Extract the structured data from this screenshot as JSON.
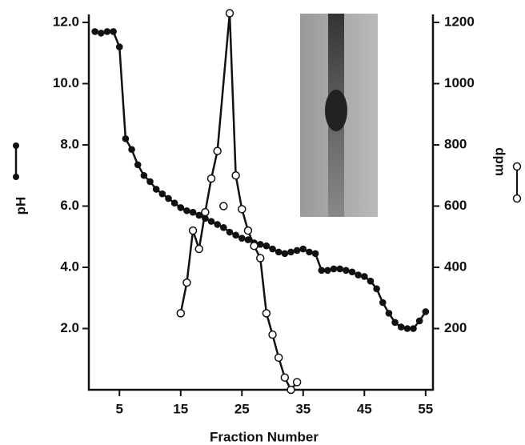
{
  "chart_data": {
    "type": "line",
    "x_label": "Fraction Number",
    "y_label": "pH",
    "y2_label": "dpm",
    "xlim": [
      0,
      56.2
    ],
    "xticks": [
      5,
      15,
      25,
      35,
      45,
      55
    ],
    "ylim": [
      0,
      12
    ],
    "yticks": [
      {
        "value": 2,
        "label": "2.0"
      },
      {
        "value": 4,
        "label": "4.0"
      },
      {
        "value": 6,
        "label": "6.0"
      },
      {
        "value": 8,
        "label": "8.0"
      },
      {
        "value": 10,
        "label": "10.0"
      },
      {
        "value": 12,
        "label": "12.0"
      }
    ],
    "y2lim": [
      0,
      1200
    ],
    "y2ticks": [
      200,
      400,
      600,
      800,
      1000,
      1200
    ],
    "series": [
      {
        "color": "#111111",
        "marker": "filled",
        "x": [
          1,
          2,
          3,
          4,
          5,
          6,
          7,
          8,
          9,
          10,
          11,
          12,
          13,
          14,
          15,
          16,
          17,
          18,
          19,
          20,
          21,
          22,
          23,
          24,
          25,
          26,
          27,
          28,
          29,
          30,
          31,
          32,
          33,
          34,
          35,
          36,
          37,
          38,
          39,
          40,
          41,
          42,
          43,
          44,
          45,
          46,
          47,
          48,
          49,
          50,
          51,
          52,
          53,
          54,
          55
        ],
        "values": [
          11.7,
          11.65,
          11.7,
          11.7,
          11.2,
          8.2,
          7.85,
          7.35,
          7.0,
          6.8,
          6.55,
          6.4,
          6.25,
          6.1,
          5.95,
          5.85,
          5.8,
          5.7,
          5.6,
          5.5,
          5.4,
          5.3,
          5.15,
          5.05,
          4.95,
          4.9,
          4.8,
          4.75,
          4.7,
          4.6,
          4.5,
          4.45,
          4.5,
          4.55,
          4.6,
          4.5,
          4.45,
          3.9,
          3.9,
          3.95,
          3.95,
          3.9,
          3.85,
          3.75,
          3.7,
          3.55,
          3.3,
          2.85,
          2.5,
          2.2,
          2.05,
          2.0,
          2.0,
          2.25,
          2.55
        ]
      },
      {
        "color": "#111111",
        "marker": "open",
        "axis": "y2",
        "x": [
          15,
          16,
          17,
          18,
          19,
          20,
          21,
          23,
          24,
          25,
          26,
          27,
          28,
          29,
          30,
          31,
          32,
          33,
          34
        ],
        "values": [
          250,
          350,
          520,
          460,
          580,
          690,
          780,
          1230,
          700,
          590,
          520,
          470,
          430,
          250,
          180,
          105,
          40,
          0,
          25
        ]
      },
      {
        "color": "#111111",
        "marker": "open",
        "axis": "y2",
        "line": false,
        "x": [
          22
        ],
        "values": [
          600
        ]
      }
    ]
  }
}
